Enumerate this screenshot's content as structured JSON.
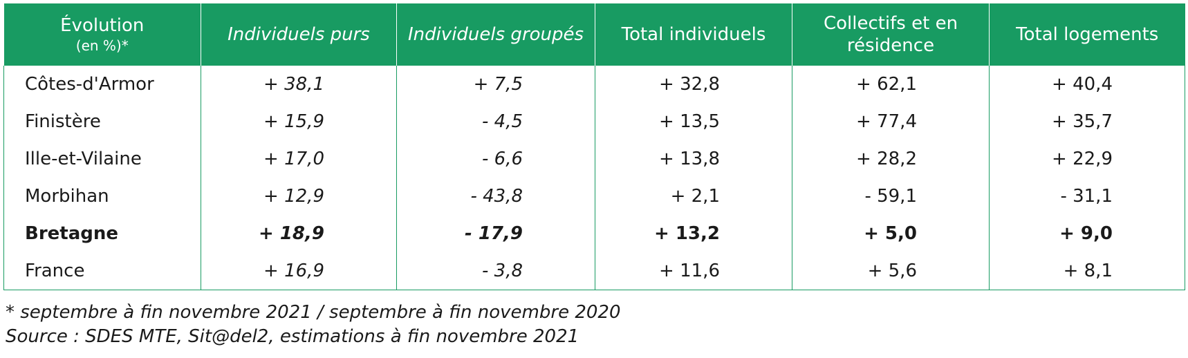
{
  "table": {
    "header": [
      [
        "Évolution",
        "(en %)*"
      ],
      "Individuels purs",
      "Individuels groupés",
      "Total individuels",
      "Collectifs et en résidence",
      "Total logements"
    ],
    "rows": [
      [
        "Côtes-d'Armor",
        "+ 38,1",
        "+ 7,5",
        "+ 32,8",
        "+ 62,1",
        "+ 40,4"
      ],
      [
        "Finistère",
        "+ 15,9",
        "- 4,5",
        "+ 13,5",
        "+ 77,4",
        "+ 35,7"
      ],
      [
        "Ille-et-Vilaine",
        "+ 17,0",
        "- 6,6",
        "+ 13,8",
        "+ 28,2",
        "+ 22,9"
      ],
      [
        "Morbihan",
        "+ 12,9",
        "- 43,8",
        "+ 2,1",
        "- 59,1",
        "- 31,1"
      ],
      [
        "Bretagne",
        "+ 18,9",
        "- 17,9",
        "+ 13,2",
        "+ 5,0",
        "+ 9,0"
      ],
      [
        "France",
        "+ 16,9",
        "- 3,8",
        "+ 11,6",
        "+ 5,6",
        "+ 8,1"
      ]
    ]
  },
  "footnotes": [
    "* septembre à fin novembre 2021 / septembre à fin novembre 2020",
    "Source : SDES MTE, Sit@del2, estimations à fin novembre 2021"
  ]
}
